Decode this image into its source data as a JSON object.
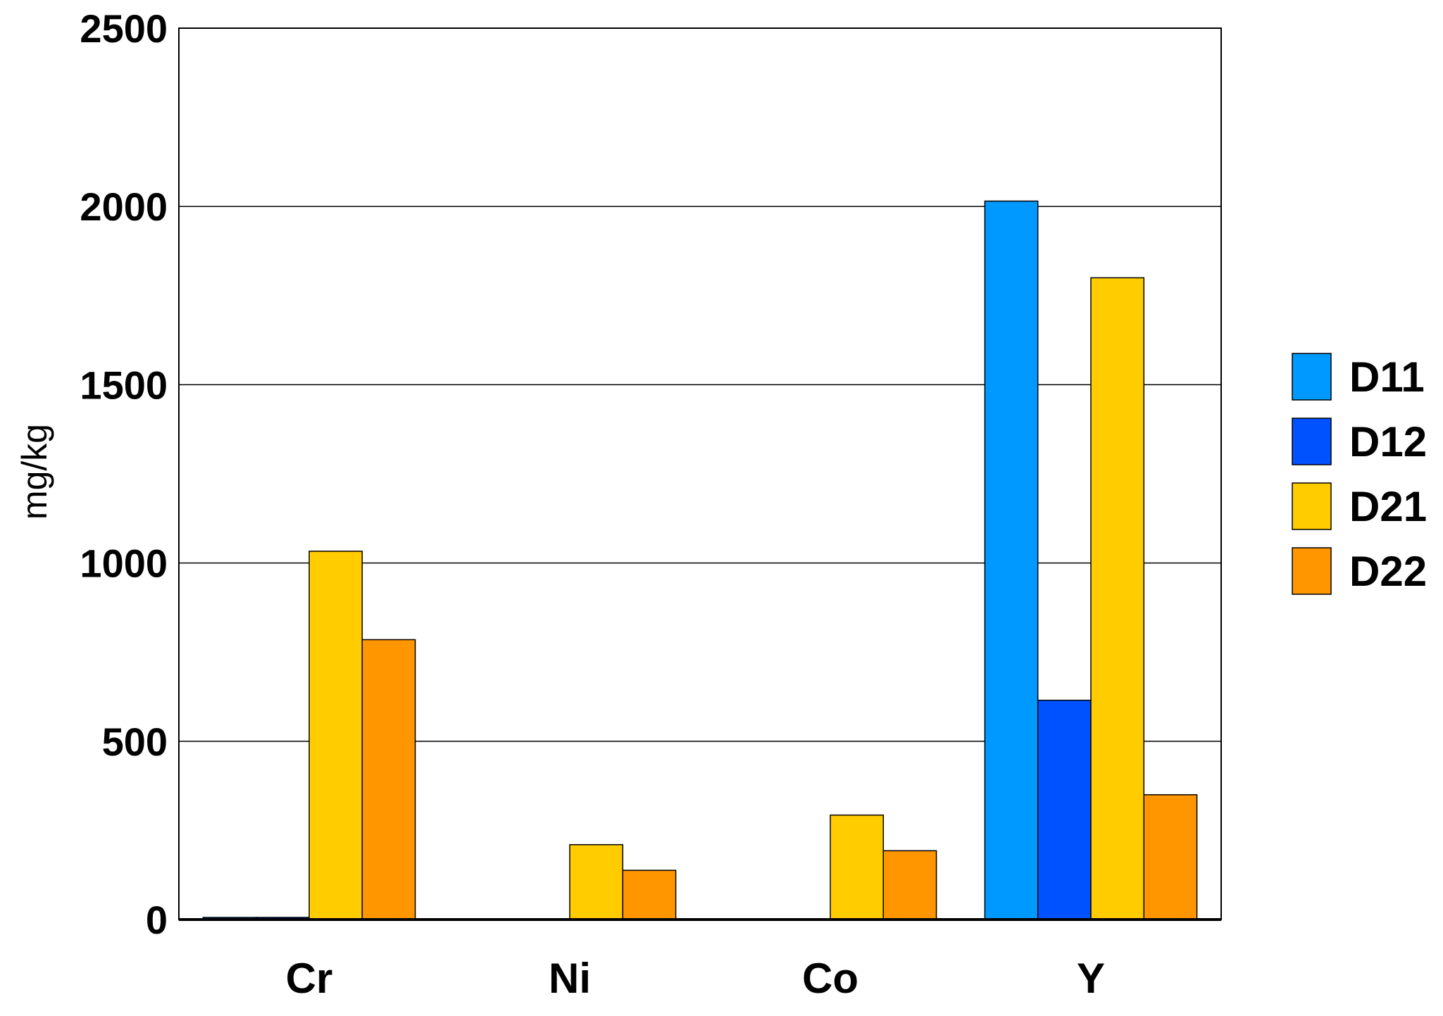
{
  "chart_data": {
    "type": "bar",
    "title": "",
    "xlabel": "",
    "ylabel": "mg/kg",
    "ylim": [
      0,
      2500
    ],
    "yticks": [
      "0",
      "500",
      "1000",
      "1500",
      "2000",
      "2500"
    ],
    "grid": true,
    "legend_position": "right",
    "categories": [
      "Cr",
      "Ni",
      "Co",
      "Y"
    ],
    "series": [
      {
        "name": "D11",
        "color": "#0099FF",
        "values": [
          6,
          0,
          0,
          2015
        ]
      },
      {
        "name": "D12",
        "color": "#0052FF",
        "values": [
          6,
          0,
          0,
          615
        ]
      },
      {
        "name": "D21",
        "color": "#FFCC00",
        "values": [
          1033,
          210,
          293,
          1800
        ]
      },
      {
        "name": "D22",
        "color": "#FF9600",
        "values": [
          785,
          138,
          193,
          350
        ]
      }
    ]
  }
}
